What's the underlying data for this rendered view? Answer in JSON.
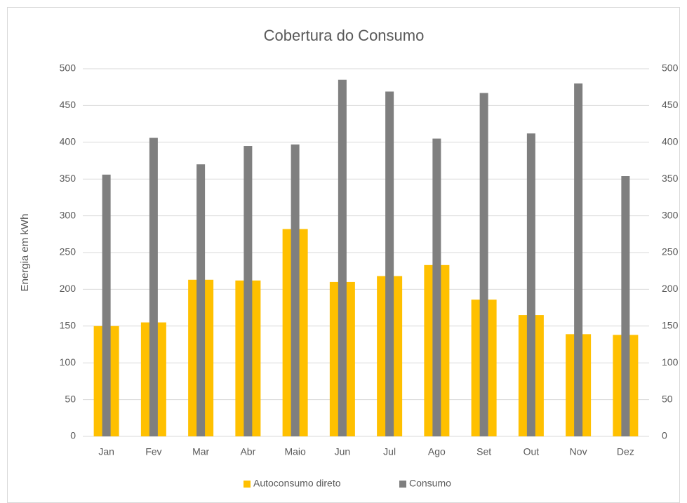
{
  "chart_data": {
    "type": "bar",
    "title": "Cobertura do Consumo",
    "y_label": "Energia em kWh",
    "categories": [
      "Jan",
      "Fev",
      "Mar",
      "Abr",
      "Maio",
      "Jun",
      "Jul",
      "Ago",
      "Set",
      "Out",
      "Nov",
      "Dez"
    ],
    "series": [
      {
        "name": "Autoconsumo direto",
        "color": "#ffc000",
        "values": [
          150,
          155,
          213,
          212,
          282,
          210,
          218,
          233,
          186,
          165,
          139,
          138
        ]
      },
      {
        "name": "Consumo",
        "color": "#7f7f7f",
        "axis": "y2",
        "values": [
          356,
          406,
          370,
          395,
          397,
          485,
          469,
          405,
          467,
          412,
          480,
          354
        ]
      }
    ],
    "ylim": [
      0,
      500
    ],
    "yticks": [
      0,
      50,
      100,
      150,
      200,
      250,
      300,
      350,
      400,
      450,
      500
    ],
    "y2lim": [
      0,
      500
    ],
    "y2ticks": [
      0,
      50,
      100,
      150,
      200,
      250,
      300,
      350,
      400,
      450,
      500
    ],
    "grid": true,
    "legend": "bottom"
  }
}
